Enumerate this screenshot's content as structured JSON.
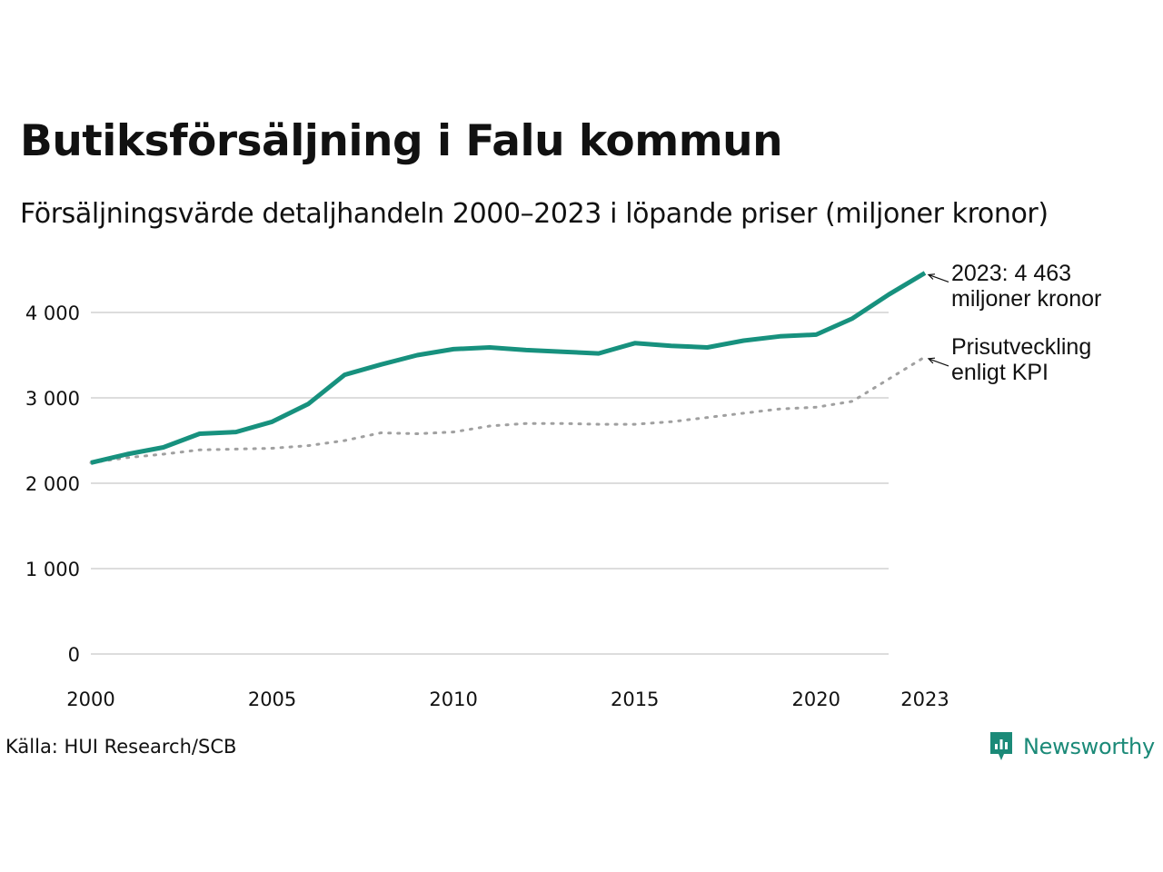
{
  "header": {
    "title": "Butiksförsäljning i Falu kommun",
    "subtitle": "Försäljningsvärde detaljhandeln 2000–2023 i löpande priser (miljoner kronor)"
  },
  "footer": {
    "source": "Källa: HUI Research/SCB",
    "brand": "Newsworthy"
  },
  "colors": {
    "sales": "#17917e",
    "kpi": "#a0a0a0",
    "grid": "#dddddd",
    "brand": "#1b8a78"
  },
  "chart_data": {
    "type": "line",
    "title": "Butiksförsäljning i Falu kommun",
    "subtitle": "Försäljningsvärde detaljhandeln 2000–2023 i löpande priser (miljoner kronor)",
    "xlabel": "",
    "ylabel": "",
    "xlim": [
      2000,
      2023
    ],
    "ylim": [
      0,
      4600
    ],
    "grid": true,
    "y_ticks": [
      0,
      1000,
      2000,
      3000,
      4000
    ],
    "y_tick_labels": [
      "0",
      "1 000",
      "2 000",
      "3 000",
      "4 000"
    ],
    "x_ticks": [
      2000,
      2005,
      2010,
      2015,
      2020,
      2023
    ],
    "x_tick_labels": [
      "2000",
      "2005",
      "2010",
      "2015",
      "2020",
      "2023"
    ],
    "x": [
      2000,
      2001,
      2002,
      2003,
      2004,
      2005,
      2006,
      2007,
      2008,
      2009,
      2010,
      2011,
      2012,
      2013,
      2014,
      2015,
      2016,
      2017,
      2018,
      2019,
      2020,
      2021,
      2022,
      2023
    ],
    "series": [
      {
        "name": "Försäljningsvärde",
        "style": "solid",
        "values": [
          2240,
          2340,
          2420,
          2580,
          2600,
          2720,
          2930,
          3270,
          3390,
          3500,
          3570,
          3590,
          3560,
          3540,
          3520,
          3640,
          3610,
          3590,
          3670,
          3720,
          3740,
          3930,
          4210,
          4463
        ],
        "annotation": [
          "2023: 4 463",
          "miljoner kronor"
        ]
      },
      {
        "name": "Prisutveckling enligt KPI",
        "style": "dotted",
        "values": [
          2240,
          2300,
          2340,
          2390,
          2400,
          2410,
          2440,
          2500,
          2590,
          2580,
          2600,
          2670,
          2700,
          2700,
          2690,
          2690,
          2720,
          2770,
          2820,
          2870,
          2890,
          2960,
          3220,
          3480
        ],
        "annotation": [
          "Prisutveckling",
          "enligt KPI"
        ]
      }
    ]
  }
}
